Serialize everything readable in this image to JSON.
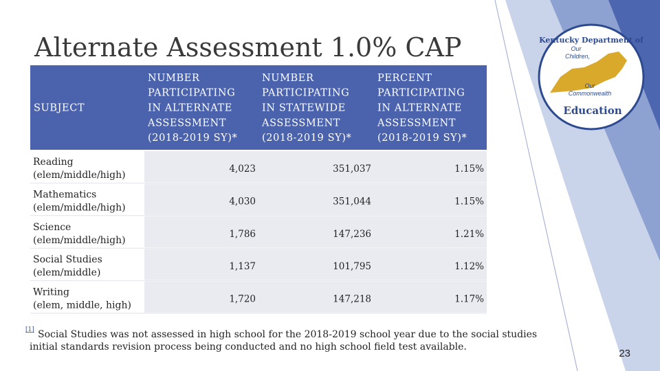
{
  "title": "Alternate Assessment 1.0% CAP",
  "table": {
    "headers": [
      [
        "SUBJECT"
      ],
      [
        "NUMBER",
        "PARTICIPATING",
        "IN ALTERNATE",
        "ASSESSMENT",
        "(2018-2019 SY)*"
      ],
      [
        "NUMBER",
        "PARTICIPATING",
        "IN STATEWIDE",
        "ASSESSMENT",
        "(2018-2019 SY)*"
      ],
      [
        "PERCENT",
        "PARTICIPATING",
        "IN ALTERNATE",
        "ASSESSMENT",
        "(2018-2019 SY)*"
      ]
    ],
    "rows": [
      [
        [
          "Reading",
          "(elem/middle/high)"
        ],
        "4,023",
        "351,037",
        "1.15%"
      ],
      [
        [
          "Mathematics",
          "(elem/middle/high)"
        ],
        "4,030",
        "351,044",
        "1.15%"
      ],
      [
        [
          "Science",
          "(elem/middle/high)"
        ],
        "1,786",
        "147,236",
        "1.21%"
      ],
      [
        [
          "Social Studies",
          "(elem/middle)"
        ],
        "1,137",
        "101,795",
        "1.12%"
      ],
      [
        [
          "Writing",
          "(elem, middle, high)"
        ],
        "1,720",
        "147,218",
        "1.17%"
      ]
    ]
  },
  "footnote": {
    "marker": "[1]",
    "lines": [
      "Social Studies was not assessed in high school for the 2018-2019 school year due to the social studies",
      "initial standards revision process being conducted and no high school field test available."
    ]
  },
  "logo": {
    "top": "Kentucky Department of",
    "middle": [
      "Our",
      "Children,"
    ],
    "lower": [
      "Our",
      "Commonwealth"
    ],
    "bottom": "Education"
  },
  "page_number": "23"
}
